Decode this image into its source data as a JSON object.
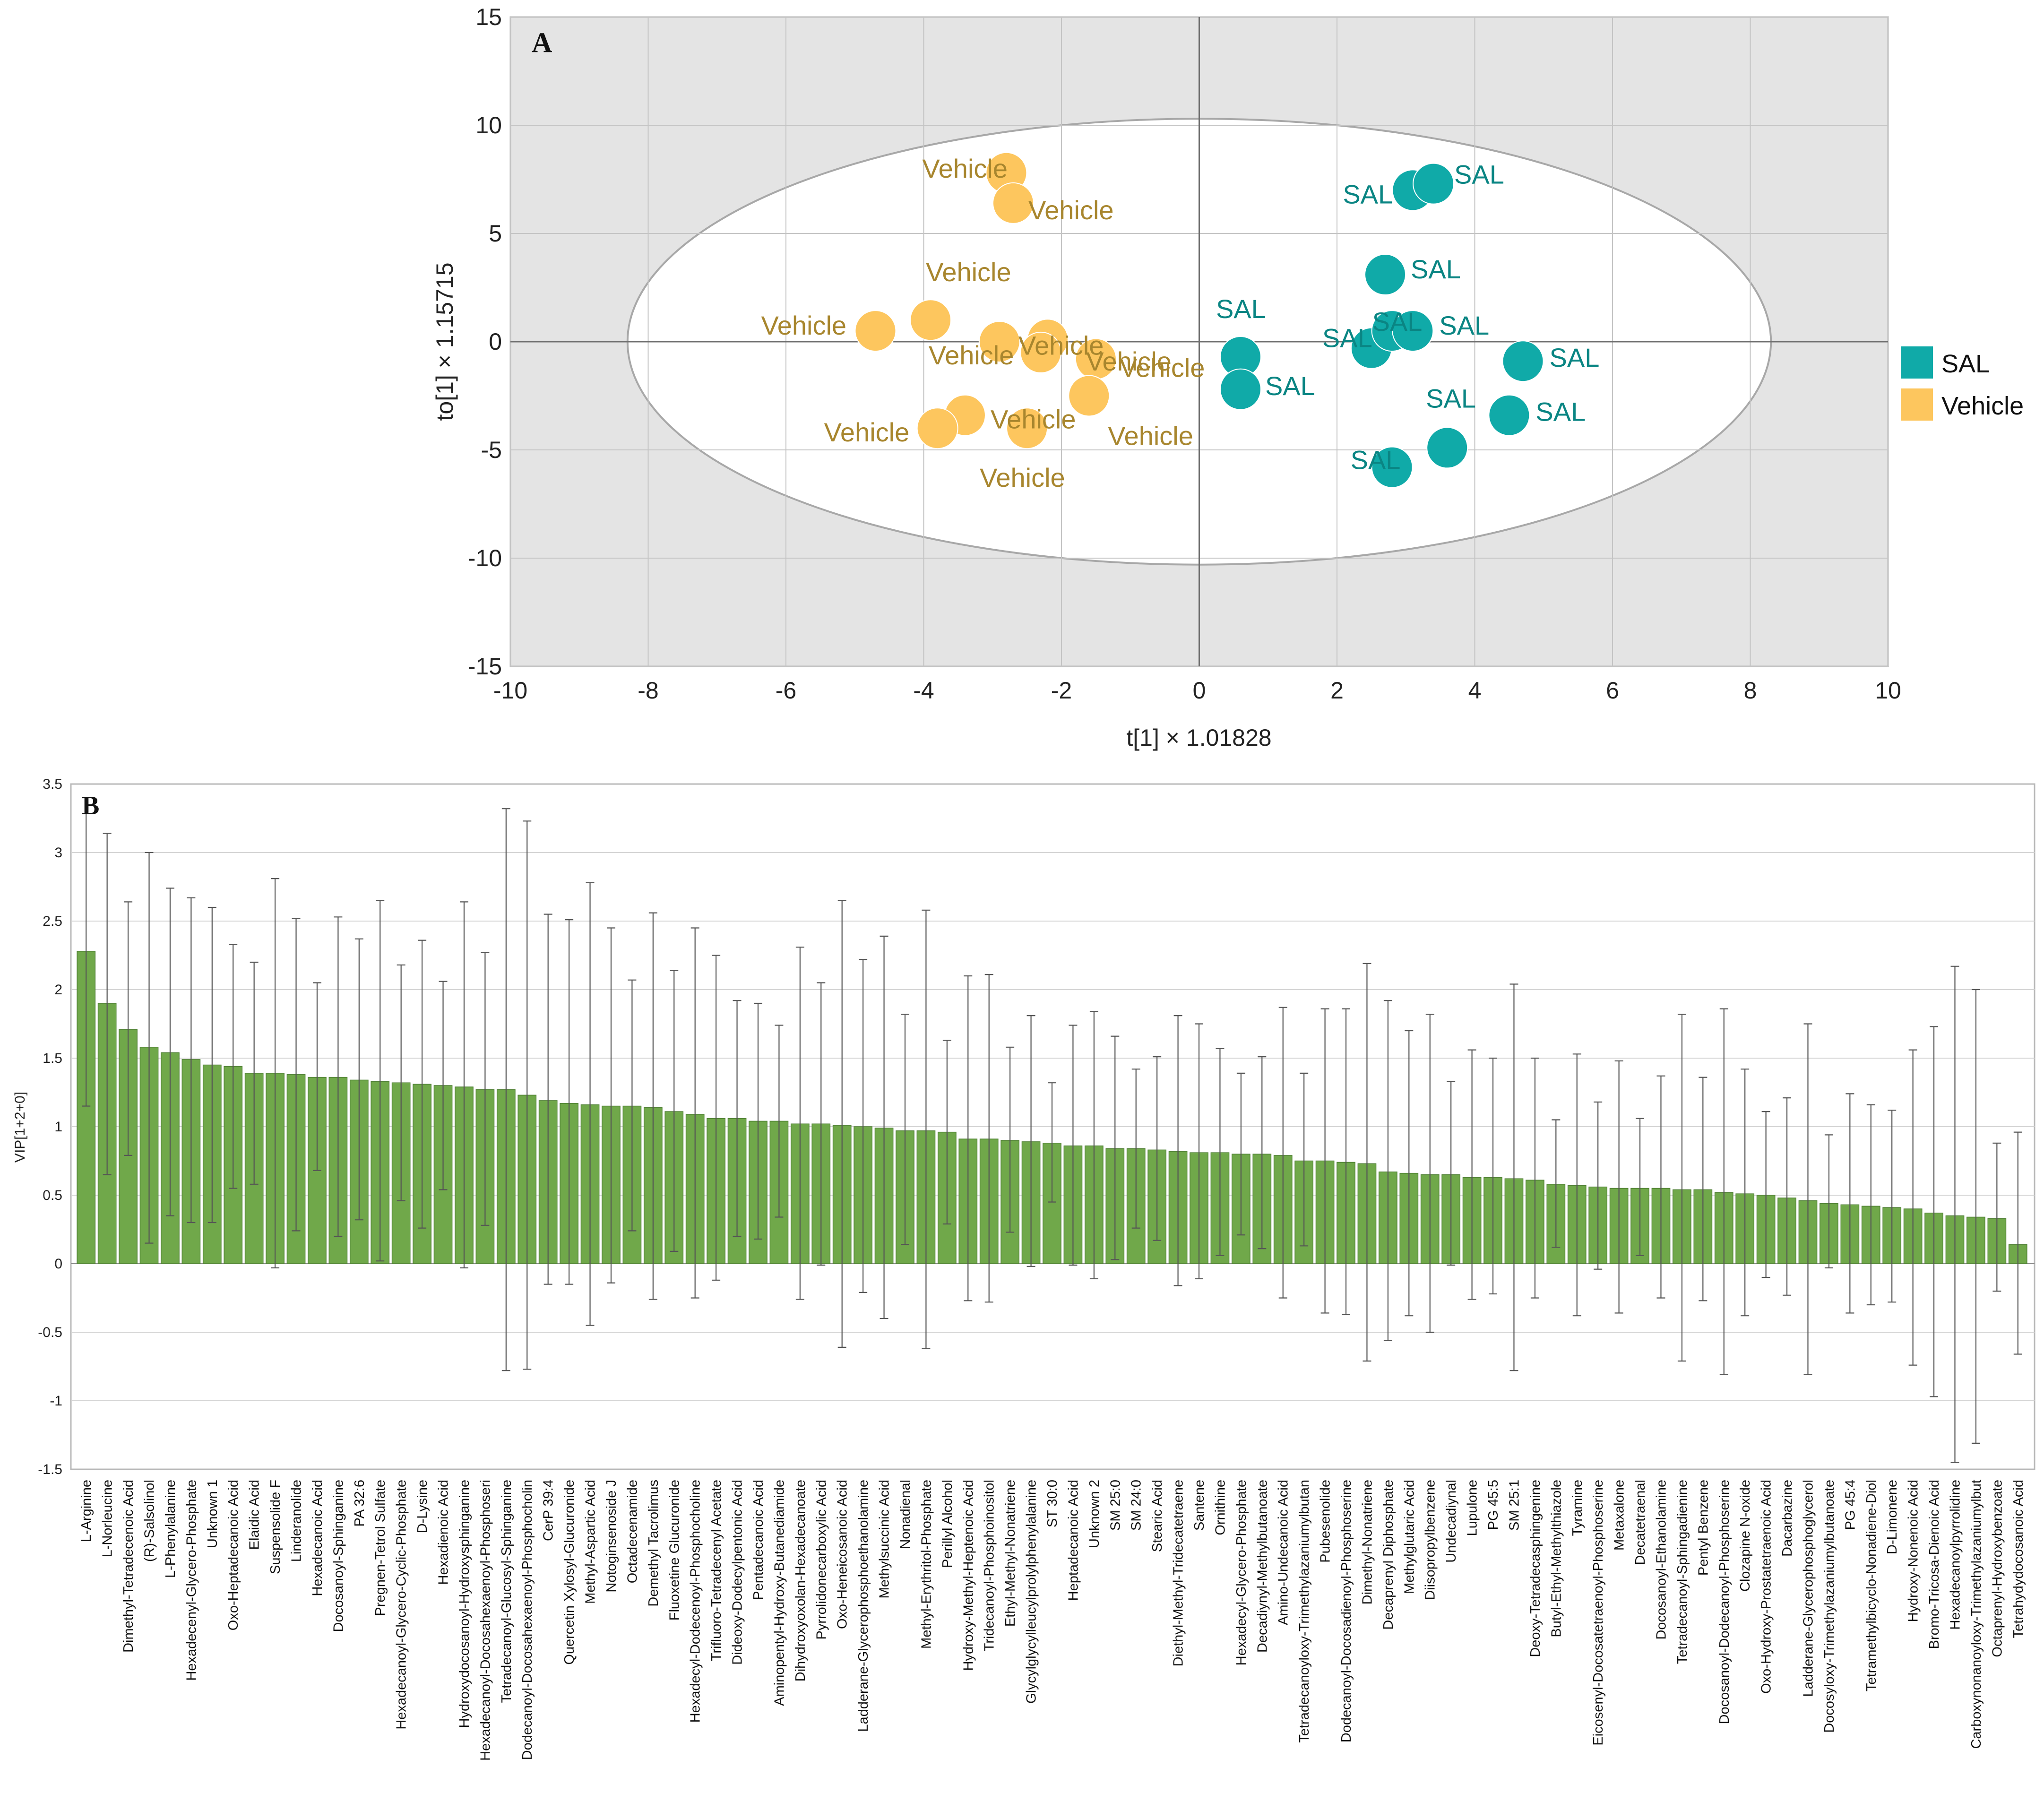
{
  "chart_data": [
    {
      "type": "scatter",
      "panel_label": "A",
      "xlabel": "t[1] × 1.01828",
      "ylabel": "to[1] × 1.15715",
      "xlim": [
        -10,
        10
      ],
      "ylim": [
        -15,
        15
      ],
      "x_ticks": [
        "-10",
        "-8",
        "-6",
        "-4",
        "-2",
        "0",
        "2",
        "4",
        "6",
        "8",
        "10"
      ],
      "y_ticks": [
        "15",
        "10",
        "5",
        "0",
        "-5",
        "-10",
        "-15"
      ],
      "ellipse": {
        "center": [
          0,
          0
        ],
        "rx": 8.3,
        "ry": 10.3
      },
      "legend": [
        {
          "name": "SAL",
          "color": "#10aaa8"
        },
        {
          "name": "Vehicle",
          "color": "#fdc65e"
        }
      ],
      "series": [
        {
          "name": "Vehicle",
          "color": "#fdc65e",
          "label_color": "#a8862e",
          "points": [
            {
              "x": -2.8,
              "y": 7.8,
              "label": "Vehicle"
            },
            {
              "x": -2.7,
              "y": 6.4,
              "label": "Vehicle"
            },
            {
              "x": -3.9,
              "y": 1.0,
              "label": "Vehicle"
            },
            {
              "x": -4.7,
              "y": 0.5,
              "label": "Vehicle"
            },
            {
              "x": -2.9,
              "y": 0.0,
              "label": "Vehicle"
            },
            {
              "x": -2.2,
              "y": 0.1,
              "label": "Vehicle"
            },
            {
              "x": -2.3,
              "y": -0.5,
              "label": "Vehicle"
            },
            {
              "x": -1.5,
              "y": -0.8,
              "label": "Vehicle"
            },
            {
              "x": -1.6,
              "y": -2.5,
              "label": "Vehicle"
            },
            {
              "x": -3.4,
              "y": -3.4,
              "label": "Vehicle"
            },
            {
              "x": -3.8,
              "y": -4.0,
              "label": "Vehicle"
            },
            {
              "x": -2.5,
              "y": -4.0,
              "label": "Vehicle"
            }
          ]
        },
        {
          "name": "SAL",
          "color": "#10aaa8",
          "label_color": "#0a8583",
          "points": [
            {
              "x": 3.1,
              "y": 7.0,
              "label": "SAL"
            },
            {
              "x": 3.4,
              "y": 7.3,
              "label": "SAL"
            },
            {
              "x": 2.7,
              "y": 3.1,
              "label": "SAL"
            },
            {
              "x": 0.6,
              "y": -0.7,
              "label": "SAL"
            },
            {
              "x": 0.6,
              "y": -2.2,
              "label": "SAL"
            },
            {
              "x": 2.5,
              "y": -0.3,
              "label": "SAL"
            },
            {
              "x": 2.8,
              "y": 0.5,
              "label": "SAL"
            },
            {
              "x": 3.1,
              "y": 0.5,
              "label": "SAL"
            },
            {
              "x": 4.7,
              "y": -0.9,
              "label": "SAL"
            },
            {
              "x": 4.5,
              "y": -3.4,
              "label": "SAL"
            },
            {
              "x": 3.6,
              "y": -4.9,
              "label": "SAL"
            },
            {
              "x": 2.8,
              "y": -5.8,
              "label": "SAL"
            }
          ]
        }
      ]
    },
    {
      "type": "bar",
      "panel_label": "B",
      "ylabel": "VIP[1+2+0]",
      "xlabel": "",
      "ylim": [
        -1.5,
        3.5
      ],
      "y_ticks": [
        "3.5",
        "3",
        "2.5",
        "2",
        "1.5",
        "1",
        "0.5",
        "0",
        "-0.5",
        "-1",
        "-1.5"
      ],
      "bar_color": "#70a84a",
      "categories": [
        "L-Arginine",
        "L-Norleucine",
        "Dimethyl-Tetradecenoic Acid",
        "(R)-Salsolinol",
        "L-Phenylalanine",
        "Hexadecenyl-Glycero-Phosphate",
        "Unknown 1",
        "Oxo-Heptadecanoic Acid",
        "Elaidic Acid",
        "Suspensolide F",
        "Linderanolide",
        "Hexadecanoic Acid",
        "Docosanoyl-Sphinganine",
        "PA 32:6",
        "Pregnen-Tetrol Sulfate",
        "Hexadecanoyl-Glycero-Cyclic-Phosphate",
        "D-Lysine",
        "Hexadienoic Acid",
        "Hydroxydocosanoyl-Hydroxysphinganine",
        "Hexadecanoyl-Docosahexaenoyl-Phosphoseri",
        "Tetradecanoyl-Glucosyl-Sphinganine",
        "Dodecanoyl-Docosahexaenoyl-Phosphocholin",
        "CerP 39:4",
        "Quercetin Xylosyl-Glucuronide",
        "Methyl-Aspartic Acid",
        "Notoginsenoside J",
        "Octadecenamide",
        "Demethyl Tacrolimus",
        "Fluoxetine Glucuronide",
        "Hexadecyl-Dodecenoyl-Phosphocholine",
        "Trifluoro-Tetradecenyl Acetate",
        "Dideoxy-Dodecylpentonic Acid",
        "Pentadecanoic Acid",
        "Aminopentyl-Hydroxy-Butanediamide",
        "Dihydroxyoxolan-Hexadecanoate",
        "Pyrrolidonecarboxylic Acid",
        "Oxo-Heneicosanoic Acid",
        "Ladderane-Glycerophosphoethanolamine",
        "Methylsuccinic Acid",
        "Nonadienal",
        "Methyl-Erythritol-Phosphate",
        "Perillyl Alcohol",
        "Hydroxy-Methyl-Heptenoic Acid",
        "Tridecanoyl-Phosphoinositol",
        "Ethyl-Methyl-Nonatriene",
        "Glycylglycylleucylprolylphenylalanine",
        "ST 30:0",
        "Heptadecanoic Acid",
        "Unknown 2",
        "SM 25:0",
        "SM 24:0",
        "Stearic Acid",
        "Diethyl-Methyl-Tridecatetraene",
        "Santene",
        "Ornithine",
        "Hexadecyl-Glycero-Phosphate",
        "Decadiynyl-Methylbutanoate",
        "Amino-Undecanoic Acid",
        "Tetradecanoyloxy-Trimethylazaniumylbutan",
        "Pubesenolide",
        "Dodecanoyl-Docosadienoyl-Phosphoserine",
        "Dimethyl-Nonatriene",
        "Decaprenyl Diphosphate",
        "Methylglutaric Acid",
        "Diisopropylbenzene",
        "Undecadiynal",
        "Lupulone",
        "PG 45:5",
        "SM 25:1",
        "Deoxy-Tetradecasphingenine",
        "Butyl-Ethyl-Methylthiazole",
        "Tyramine",
        "Eicosenyl-Docosatetraenoyl-Phosphoserine",
        "Metaxalone",
        "Decatetraenal",
        "Docosanoyl-Ethanolamine",
        "Tetradecanoyl-Sphingadienine",
        "Pentyl Benzene",
        "Docosanoyl-Dodecanoyl-Phosphoserine",
        "Clozapine N-oxide",
        "Oxo-Hydroxy-Prostatetraenoic Acid",
        "Dacarbazine",
        "Ladderane-Glycerophosphoglycerol",
        "Docosyloxy-Trimethylazaniumylbutanoate",
        "PG 45:4",
        "Tetramethylbicyclo-Nonadiene-Diol",
        "D-Limonene",
        "Hydroxy-Nonenoic Acid",
        "Bromo-Tricosa-Dienoic Acid",
        "Hexadecanoylpyrrolidine",
        "Carboxynonanoyloxy-Trimethylazaniumylbut",
        "Octaprenyl-Hydroxybenzoate",
        "Tetrahydydocosanoic Acid"
      ],
      "values": [
        2.28,
        1.9,
        1.71,
        1.58,
        1.54,
        1.49,
        1.45,
        1.44,
        1.39,
        1.39,
        1.38,
        1.36,
        1.36,
        1.34,
        1.33,
        1.32,
        1.31,
        1.3,
        1.29,
        1.27,
        1.27,
        1.23,
        1.19,
        1.17,
        1.16,
        1.15,
        1.15,
        1.14,
        1.11,
        1.09,
        1.06,
        1.06,
        1.04,
        1.04,
        1.02,
        1.02,
        1.01,
        1.0,
        0.99,
        0.97,
        0.97,
        0.96,
        0.91,
        0.91,
        0.9,
        0.89,
        0.88,
        0.86,
        0.86,
        0.84,
        0.84,
        0.83,
        0.82,
        0.81,
        0.81,
        0.8,
        0.8,
        0.79,
        0.75,
        0.75,
        0.74,
        0.73,
        0.67,
        0.66,
        0.65,
        0.65,
        0.63,
        0.63,
        0.62,
        0.61,
        0.58,
        0.57,
        0.56,
        0.55,
        0.55,
        0.55,
        0.54,
        0.54,
        0.52,
        0.51,
        0.5,
        0.48,
        0.46,
        0.44,
        0.43,
        0.42,
        0.41,
        0.4,
        0.37,
        0.35,
        0.34,
        0.33,
        0.14
      ],
      "err_hi": [
        3.4,
        3.14,
        2.64,
        3.0,
        2.74,
        2.67,
        2.6,
        2.33,
        2.2,
        2.81,
        2.52,
        2.05,
        2.53,
        2.37,
        2.65,
        2.18,
        2.36,
        2.06,
        2.64,
        2.27,
        3.32,
        3.23,
        2.55,
        2.51,
        2.78,
        2.45,
        2.07,
        2.56,
        2.14,
        2.45,
        2.25,
        1.92,
        1.9,
        1.74,
        2.31,
        2.05,
        2.65,
        2.22,
        2.39,
        1.82,
        2.58,
        1.63,
        2.1,
        2.11,
        1.58,
        1.81,
        1.32,
        1.74,
        1.84,
        1.66,
        1.42,
        1.51,
        1.81,
        1.75,
        1.57,
        1.39,
        1.51,
        1.87,
        1.39,
        1.86,
        1.86,
        2.19,
        1.92,
        1.7,
        1.82,
        1.33,
        1.56,
        1.5,
        2.04,
        1.5,
        1.05,
        1.53,
        1.18,
        1.48,
        1.06,
        1.37,
        1.82,
        1.36,
        1.86,
        1.42,
        1.11,
        1.21,
        1.75,
        0.94,
        1.24,
        1.16,
        1.12,
        1.56,
        1.73,
        2.17,
        2.0,
        0.88,
        0.96
      ],
      "err_lo": [
        1.15,
        0.65,
        0.79,
        0.15,
        0.35,
        0.3,
        0.3,
        0.55,
        0.58,
        -0.03,
        0.24,
        0.68,
        0.2,
        0.32,
        0.02,
        0.46,
        0.26,
        0.54,
        -0.03,
        0.28,
        -0.78,
        -0.77,
        -0.15,
        -0.15,
        -0.45,
        -0.14,
        0.24,
        -0.26,
        0.09,
        -0.25,
        -0.12,
        0.2,
        0.18,
        0.34,
        -0.26,
        -0.01,
        -0.61,
        -0.21,
        -0.4,
        0.14,
        -0.62,
        0.29,
        -0.27,
        -0.28,
        0.23,
        -0.02,
        0.45,
        -0.01,
        -0.11,
        0.03,
        0.26,
        0.17,
        -0.16,
        -0.11,
        0.06,
        0.21,
        0.11,
        -0.25,
        0.13,
        -0.36,
        -0.37,
        -0.71,
        -0.56,
        -0.38,
        -0.5,
        -0.01,
        -0.26,
        -0.22,
        -0.78,
        -0.25,
        0.12,
        -0.38,
        -0.04,
        -0.36,
        0.06,
        -0.25,
        -0.71,
        -0.27,
        -0.81,
        -0.38,
        -0.1,
        -0.23,
        -0.81,
        -0.03,
        -0.36,
        -0.3,
        -0.28,
        -0.74,
        -0.97,
        -1.45,
        -1.31,
        -0.2,
        -0.66
      ]
    }
  ]
}
